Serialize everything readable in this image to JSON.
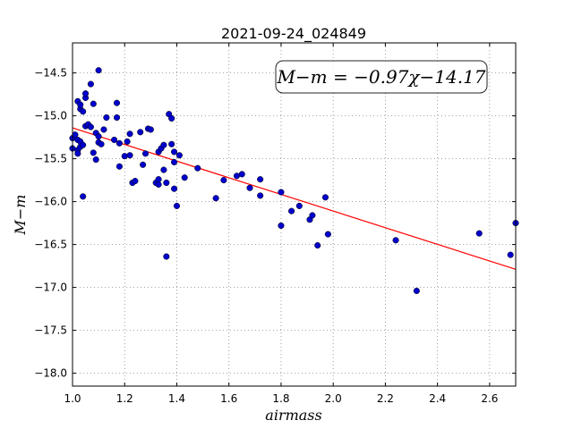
{
  "chart_data": {
    "type": "scatter",
    "title": "2021-09-24_024849",
    "xlabel": "airmass",
    "ylabel": "M−m",
    "xlim": [
      1.0,
      2.7
    ],
    "ylim": [
      -18.15,
      -14.15
    ],
    "xticks": [
      "1.0",
      "1.2",
      "1.4",
      "1.6",
      "1.8",
      "2.0",
      "2.2",
      "2.4",
      "2.6"
    ],
    "yticks": [
      "−14.5",
      "−15.0",
      "−15.5",
      "−16.0",
      "−16.5",
      "−17.0",
      "−17.5",
      "−18.0"
    ],
    "grid": true,
    "annotation": "M−m = −0.97χ−14.17",
    "fit": {
      "slope": -0.97,
      "intercept": -14.17,
      "color": "#ff0000"
    },
    "point_color": "#0000cc",
    "points": [
      [
        1.0,
        -15.26
      ],
      [
        1.0,
        -15.38
      ],
      [
        1.01,
        -15.22
      ],
      [
        1.02,
        -15.28
      ],
      [
        1.02,
        -15.4
      ],
      [
        1.02,
        -15.44
      ],
      [
        1.03,
        -15.3
      ],
      [
        1.03,
        -15.36
      ],
      [
        1.04,
        -15.34
      ],
      [
        1.03,
        -14.92
      ],
      [
        1.04,
        -14.95
      ],
      [
        1.02,
        -14.83
      ],
      [
        1.03,
        -14.87
      ],
      [
        1.05,
        -14.79
      ],
      [
        1.05,
        -14.74
      ],
      [
        1.04,
        -15.94
      ],
      [
        1.05,
        -15.12
      ],
      [
        1.06,
        -15.1
      ],
      [
        1.07,
        -15.13
      ],
      [
        1.07,
        -14.63
      ],
      [
        1.08,
        -15.43
      ],
      [
        1.08,
        -14.86
      ],
      [
        1.09,
        -15.51
      ],
      [
        1.09,
        -15.2
      ],
      [
        1.1,
        -15.24
      ],
      [
        1.1,
        -15.31
      ],
      [
        1.11,
        -15.33
      ],
      [
        1.1,
        -14.47
      ],
      [
        1.12,
        -15.16
      ],
      [
        1.13,
        -15.02
      ],
      [
        1.16,
        -15.28
      ],
      [
        1.17,
        -15.02
      ],
      [
        1.17,
        -14.85
      ],
      [
        1.18,
        -15.59
      ],
      [
        1.18,
        -15.32
      ],
      [
        1.2,
        -15.47
      ],
      [
        1.21,
        -15.3
      ],
      [
        1.22,
        -15.21
      ],
      [
        1.22,
        -15.46
      ],
      [
        1.23,
        -15.78
      ],
      [
        1.24,
        -15.76
      ],
      [
        1.26,
        -15.19
      ],
      [
        1.27,
        -15.57
      ],
      [
        1.28,
        -15.44
      ],
      [
        1.29,
        -15.15
      ],
      [
        1.3,
        -15.16
      ],
      [
        1.32,
        -15.78
      ],
      [
        1.33,
        -15.74
      ],
      [
        1.33,
        -15.42
      ],
      [
        1.34,
        -15.38
      ],
      [
        1.33,
        -15.8
      ],
      [
        1.35,
        -15.34
      ],
      [
        1.35,
        -15.63
      ],
      [
        1.36,
        -15.78
      ],
      [
        1.36,
        -16.64
      ],
      [
        1.37,
        -14.98
      ],
      [
        1.38,
        -15.03
      ],
      [
        1.38,
        -15.33
      ],
      [
        1.39,
        -15.42
      ],
      [
        1.39,
        -15.54
      ],
      [
        1.39,
        -15.85
      ],
      [
        1.4,
        -16.05
      ],
      [
        1.41,
        -15.46
      ],
      [
        1.43,
        -15.72
      ],
      [
        1.48,
        -15.61
      ],
      [
        1.55,
        -15.96
      ],
      [
        1.58,
        -15.75
      ],
      [
        1.63,
        -15.7
      ],
      [
        1.65,
        -15.68
      ],
      [
        1.68,
        -15.84
      ],
      [
        1.72,
        -15.74
      ],
      [
        1.72,
        -15.93
      ],
      [
        1.8,
        -15.89
      ],
      [
        1.8,
        -16.28
      ],
      [
        1.84,
        -16.11
      ],
      [
        1.87,
        -16.05
      ],
      [
        1.91,
        -16.21
      ],
      [
        1.92,
        -16.16
      ],
      [
        1.94,
        -16.51
      ],
      [
        1.97,
        -15.95
      ],
      [
        1.98,
        -16.38
      ],
      [
        2.24,
        -16.45
      ],
      [
        2.32,
        -17.04
      ],
      [
        2.56,
        -16.37
      ],
      [
        2.68,
        -16.62
      ],
      [
        2.7,
        -16.25
      ]
    ]
  }
}
